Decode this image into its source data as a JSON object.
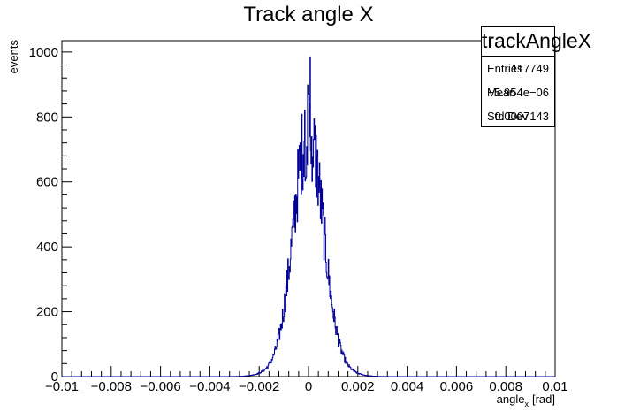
{
  "chart_data": {
    "type": "histogram",
    "title": "Track angle X",
    "xlabel": "angle",
    "xlabel_subscript": "x",
    "xlabel_unit": "[rad]",
    "ylabel": "events",
    "xlim": [
      -0.01,
      0.01
    ],
    "ylim": [
      0,
      1035
    ],
    "x_ticks": [
      -0.01,
      -0.008,
      -0.006,
      -0.004,
      -0.002,
      0,
      0.002,
      0.004,
      0.006,
      0.008,
      0.01
    ],
    "x_tick_labels": [
      "−0.01",
      "−0.008",
      "−0.006",
      "−0.004",
      "−0.002",
      "0",
      "0.002",
      "0.004",
      "0.006",
      "0.008",
      "0.01"
    ],
    "y_ticks": [
      0,
      200,
      400,
      600,
      800,
      1000
    ],
    "y_tick_labels": [
      "0",
      "200",
      "400",
      "600",
      "800",
      "1000"
    ],
    "line_color": "#000099",
    "grid": false,
    "legend": "none",
    "distribution": {
      "shape": "gaussian",
      "peak": 760,
      "mean": -6e-06,
      "sigma": 0.00058,
      "tail_sigma": 0.0009,
      "noise": 0.12,
      "bin_width": 2e-05,
      "max_spike": 985
    },
    "stats": {
      "name": "trackAngleX",
      "entries_label": "Entries",
      "entries": "117749",
      "mean_label": "Mean",
      "mean": "−5.954e−06",
      "stddev_label": "Std Dev",
      "stddev": "0.0007143"
    }
  }
}
